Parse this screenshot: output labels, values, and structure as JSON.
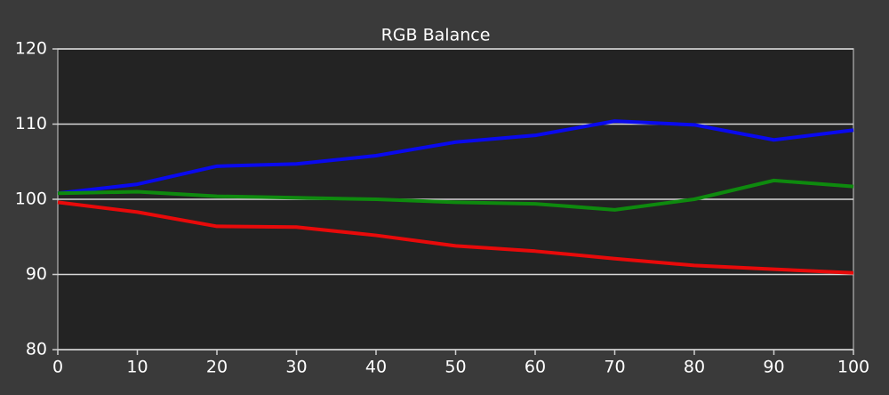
{
  "chart_data": {
    "type": "line",
    "title": "RGB Balance",
    "x": [
      0,
      10,
      20,
      30,
      40,
      50,
      60,
      70,
      80,
      90,
      100
    ],
    "series": [
      {
        "color": "#0a0aee",
        "values": [
          100.8,
          102,
          104.4,
          104.7,
          105.8,
          107.6,
          108.5,
          110.4,
          109.9,
          107.9,
          109.2
        ]
      },
      {
        "color": "#0e8a0e",
        "values": [
          100.8,
          101,
          100.4,
          100.2,
          100,
          99.6,
          99.4,
          98.6,
          100,
          102.5,
          101.7
        ]
      },
      {
        "color": "#e80a0a",
        "values": [
          99.6,
          98.3,
          96.4,
          96.3,
          95.2,
          93.8,
          93.1,
          92.1,
          91.2,
          90.7,
          90.2
        ]
      }
    ],
    "xlim": [
      0,
      100
    ],
    "xticks": [
      0,
      10,
      20,
      30,
      40,
      50,
      60,
      70,
      80,
      90,
      100
    ],
    "ylim": [
      80,
      120
    ],
    "yticks": [
      80,
      90,
      100,
      110,
      120
    ],
    "grid": true
  }
}
